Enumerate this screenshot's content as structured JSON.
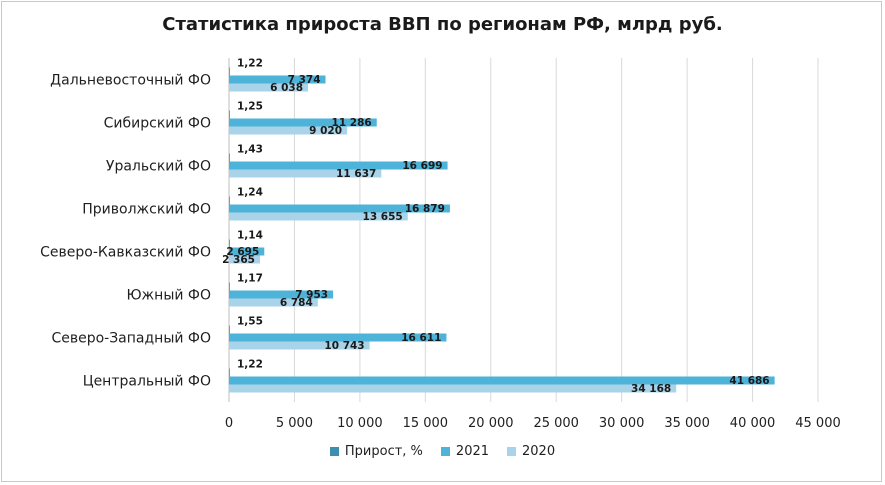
{
  "chart_data": {
    "type": "bar",
    "orientation": "horizontal",
    "title": "Статистика прироста ВВП по регионам РФ, млрд руб.",
    "categories": [
      "Дальневосточный ФО",
      "Сибирский ФО",
      "Уральский ФО",
      "Приволжский ФО",
      "Северо-Кавказский ФО",
      "Южный ФО",
      "Северо-Западный ФО",
      "Центральный ФО"
    ],
    "series": [
      {
        "name": "Прирост, %",
        "values": [
          1.22,
          1.25,
          1.43,
          1.24,
          1.14,
          1.17,
          1.55,
          1.22
        ],
        "labels": [
          "1,22",
          "1,25",
          "1,43",
          "1,24",
          "1,14",
          "1,17",
          "1,55",
          "1,22"
        ],
        "color": "#3d8fb0"
      },
      {
        "name": "2021",
        "values": [
          7374,
          11286,
          16699,
          16879,
          2695,
          7953,
          16611,
          41686
        ],
        "labels": [
          "7 374",
          "11 286",
          "16 699",
          "16 879",
          "2 695",
          "7 953",
          "16 611",
          "41 686"
        ],
        "color": "#4eb3d8"
      },
      {
        "name": "2020",
        "values": [
          6038,
          9020,
          11637,
          13655,
          2365,
          6784,
          10743,
          34168
        ],
        "labels": [
          "6 038",
          "9 020",
          "11 637",
          "13 655",
          "2 365",
          "6 784",
          "10 743",
          "34 168"
        ],
        "color": "#a9d3e8"
      }
    ],
    "xlim": [
      0,
      45000
    ],
    "xticks": [
      0,
      5000,
      10000,
      15000,
      20000,
      25000,
      30000,
      35000,
      40000,
      45000
    ],
    "xtick_labels": [
      "0",
      "5 000",
      "10 000",
      "15 000",
      "20 000",
      "25 000",
      "30 000",
      "35 000",
      "40 000",
      "45 000"
    ],
    "grid": "vertical",
    "legend_position": "bottom"
  }
}
